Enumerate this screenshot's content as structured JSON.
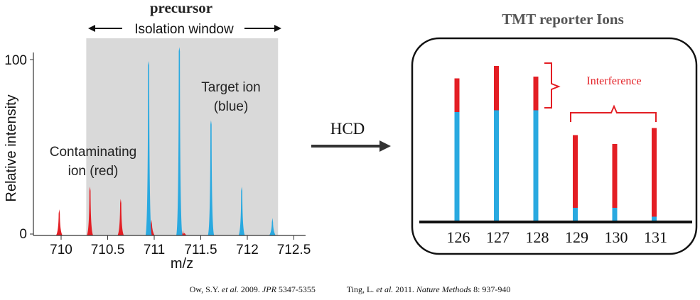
{
  "spectrum": {
    "title": "precursor",
    "window_label": "Isolation window",
    "y_axis_label": "Relative intensity",
    "x_axis_label": "m/z",
    "y_ticks": [
      "0",
      "100"
    ],
    "x_ticks": [
      "710",
      "710.5",
      "711",
      "711.5",
      "712",
      "712.5"
    ],
    "target_label_line1": "Target ion",
    "target_label_line2": "(blue)",
    "contam_label_line1": "Contaminating",
    "contam_label_line2": "ion (red)",
    "colors": {
      "target": "#29a9e0",
      "contaminant": "#e31e24",
      "window": "#d9d9d9"
    },
    "window_range": [
      710.27,
      712.33
    ],
    "blue_peaks": [
      {
        "mz": 710.94,
        "intensity": 100
      },
      {
        "mz": 711.27,
        "intensity": 108
      },
      {
        "mz": 711.61,
        "intensity": 66
      },
      {
        "mz": 711.94,
        "intensity": 28
      },
      {
        "mz": 712.27,
        "intensity": 10
      }
    ],
    "red_peaks": [
      {
        "mz": 709.98,
        "intensity": 15
      },
      {
        "mz": 710.31,
        "intensity": 28
      },
      {
        "mz": 710.64,
        "intensity": 21
      },
      {
        "mz": 710.97,
        "intensity": 9
      },
      {
        "mz": 711.31,
        "intensity": 3
      }
    ]
  },
  "arrow_label": "HCD",
  "reporter": {
    "title": "TMT reporter Ions",
    "interference_label": "Interference",
    "channels": [
      {
        "label": "126",
        "blue": 62,
        "red": 19
      },
      {
        "label": "127",
        "blue": 63,
        "red": 25
      },
      {
        "label": "128",
        "blue": 63,
        "red": 19
      },
      {
        "label": "129",
        "blue": 8,
        "red": 41
      },
      {
        "label": "130",
        "blue": 8,
        "red": 36
      },
      {
        "label": "131",
        "blue": 3,
        "red": 50
      }
    ]
  },
  "citation": {
    "ref1_authors": "Ow, S.Y. ",
    "ref1_etal": "et al.",
    "ref1_year": " 2009. ",
    "ref1_journal": "JPR",
    "ref1_pages": " 5347-5355",
    "ref2_authors": "Ting, L. ",
    "ref2_etal": "et al.",
    "ref2_year": " 2011. ",
    "ref2_journal": "Nature Methods",
    "ref2_pages": " 8: 937-940"
  }
}
